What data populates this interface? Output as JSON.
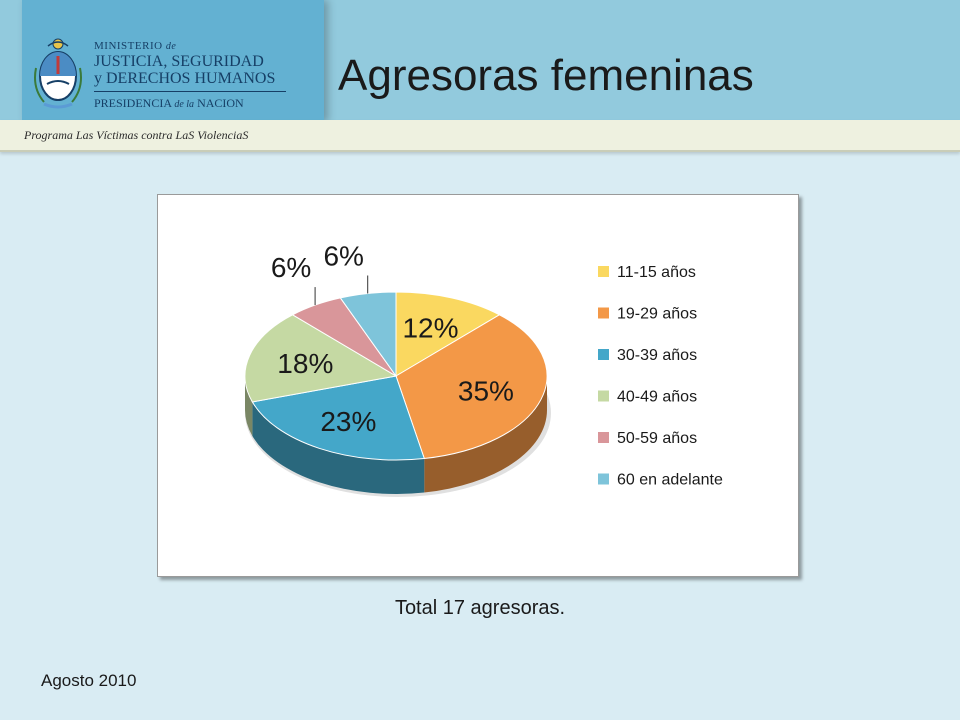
{
  "header": {
    "ministry_line1": "MINISTERIO",
    "ministry_de": "de",
    "ministry_line2": "JUSTICIA, SEGURIDAD",
    "ministry_line3": "y DERECHOS HUMANOS",
    "presidency_a": "PRESIDENCIA",
    "presidency_de": "de la",
    "presidency_b": "NACION",
    "program": "Programa Las Víctimas contra LaS ViolenciaS",
    "title": "Agresoras femeninas"
  },
  "colors": {
    "top_band": "#92cadd",
    "logo_block": "#63b1d2",
    "background": "#d9ecf3"
  },
  "chart_data": {
    "type": "pie",
    "title": "",
    "categories": [
      "11-15 años",
      "19-29 años",
      "30-39 años",
      "40-49 años",
      "50-59 años",
      "60 en adelante"
    ],
    "values": [
      12,
      35,
      23,
      18,
      6,
      6
    ],
    "labels": [
      "12%",
      "35%",
      "23%",
      "18%",
      "6%",
      "6%"
    ],
    "colors": [
      "#fad860",
      "#f39847",
      "#44a7c9",
      "#c5d9a3",
      "#d9969a",
      "#7ec4da"
    ],
    "legend_position": "right",
    "style": "3d"
  },
  "footer": {
    "total": "Total 17 agresoras.",
    "date": "Agosto 2010"
  }
}
